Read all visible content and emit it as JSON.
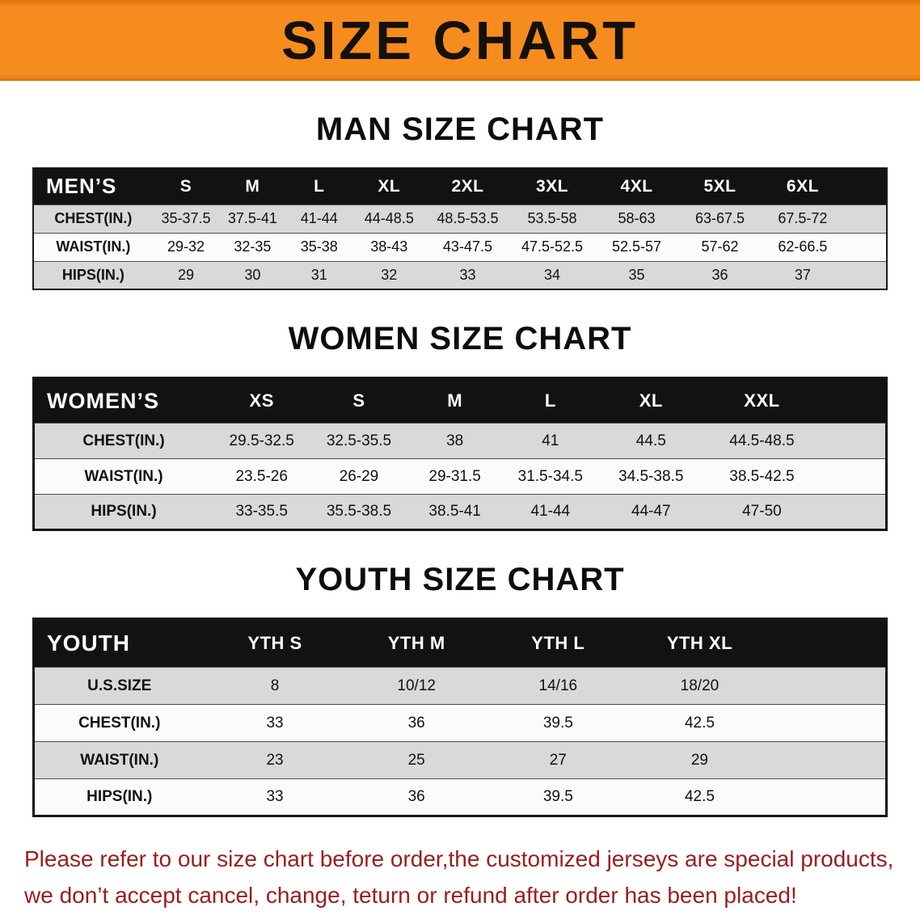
{
  "banner": {
    "title": "SIZE CHART"
  },
  "colors": {
    "banner_bg": "#f78c1e",
    "banner_edge": "#df760f",
    "header_bg": "#121212",
    "row_stripe": "#d9d9d9",
    "notice_text": "#9b1d1d"
  },
  "sections": [
    {
      "id": "men",
      "heading": "MAN SIZE CHART",
      "table": {
        "header": [
          "MEN’S",
          "S",
          "M",
          "L",
          "XL",
          "2XL",
          "3XL",
          "4XL",
          "5XL",
          "6XL"
        ],
        "rows": [
          [
            "CHEST(IN.)",
            "35-37.5",
            "37.5-41",
            "41-44",
            "44-48.5",
            "48.5-53.5",
            "53.5-58",
            "58-63",
            "63-67.5",
            "67.5-72"
          ],
          [
            "WAIST(IN.)",
            "29-32",
            "32-35",
            "35-38",
            "38-43",
            "43-47.5",
            "47.5-52.5",
            "52.5-57",
            "57-62",
            "62-66.5"
          ],
          [
            "HIPS(IN.)",
            "29",
            "30",
            "31",
            "32",
            "33",
            "34",
            "35",
            "36",
            "37"
          ]
        ]
      }
    },
    {
      "id": "women",
      "heading": "WOMEN SIZE CHART",
      "table": {
        "header": [
          "WOMEN’S",
          "XS",
          "S",
          "M",
          "L",
          "XL",
          "XXL"
        ],
        "rows": [
          [
            "CHEST(IN.)",
            "29.5-32.5",
            "32.5-35.5",
            "38",
            "41",
            "44.5",
            "44.5-48.5"
          ],
          [
            "WAIST(IN.)",
            "23.5-26",
            "26-29",
            "29-31.5",
            "31.5-34.5",
            "34.5-38.5",
            "38.5-42.5"
          ],
          [
            "HIPS(IN.)",
            "33-35.5",
            "35.5-38.5",
            "38.5-41",
            "41-44",
            "44-47",
            "47-50"
          ]
        ]
      }
    },
    {
      "id": "youth",
      "heading": "YOUTH SIZE CHART",
      "table": {
        "header": [
          "YOUTH",
          "YTH S",
          "YTH M",
          "YTH L",
          "YTH XL"
        ],
        "rows": [
          [
            "U.S.SIZE",
            "8",
            "10/12",
            "14/16",
            "18/20"
          ],
          [
            "CHEST(IN.)",
            "33",
            "36",
            "39.5",
            "42.5"
          ],
          [
            "WAIST(IN.)",
            "23",
            "25",
            "27",
            "29"
          ],
          [
            "HIPS(IN.)",
            "33",
            "36",
            "39.5",
            "42.5"
          ]
        ]
      }
    }
  ],
  "footer": {
    "line1": "Please refer to our size chart before order,the customized jerseys are special products,",
    "line2": "we don’t accept cancel, change, teturn or refund after order has been placed!"
  }
}
